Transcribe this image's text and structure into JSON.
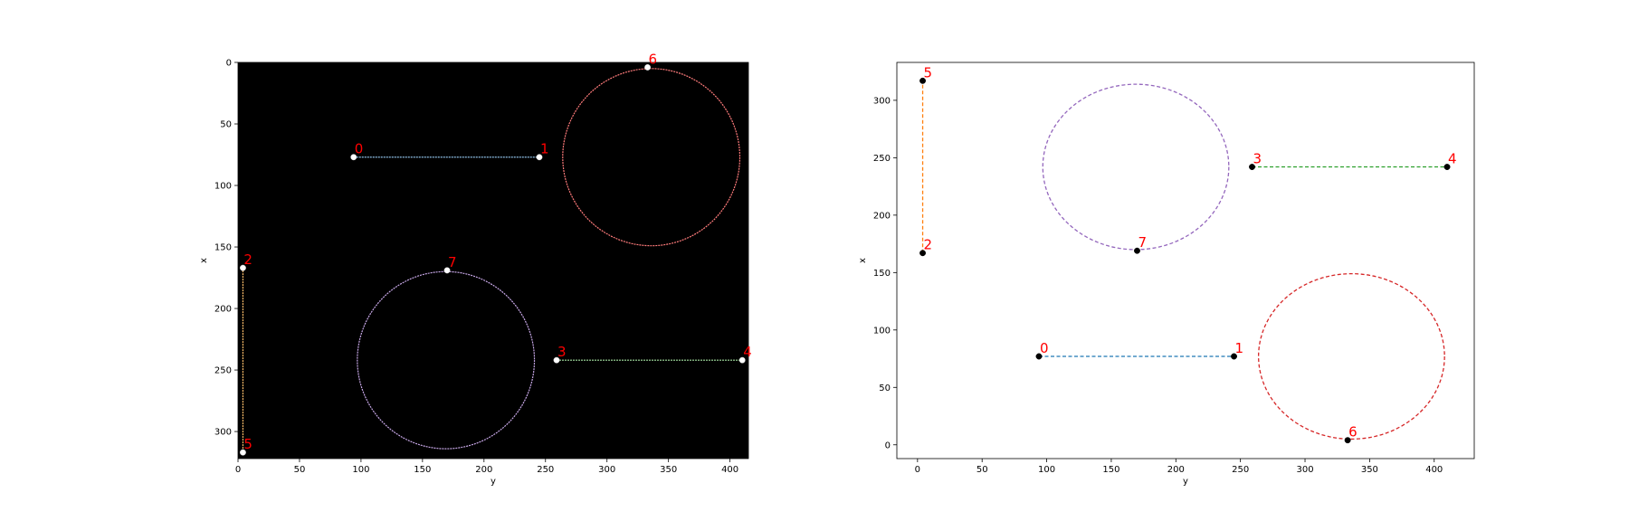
{
  "chart_data": [
    {
      "type": "scatter",
      "title": "",
      "xlabel": "y",
      "ylabel": "x",
      "xlim": [
        0,
        415
      ],
      "ylim": [
        322,
        0
      ],
      "background": "#000000",
      "point_color": "#ffffff",
      "label_color": "#ff0000",
      "xticks": [
        0,
        50,
        100,
        150,
        200,
        250,
        300,
        350,
        400
      ],
      "yticks": [
        0,
        50,
        100,
        150,
        200,
        250,
        300
      ],
      "points": [
        {
          "label": "0",
          "x": 94,
          "y": 77
        },
        {
          "label": "1",
          "x": 245,
          "y": 77
        },
        {
          "label": "2",
          "x": 4,
          "y": 167
        },
        {
          "label": "3",
          "x": 259,
          "y": 242
        },
        {
          "label": "4",
          "x": 410,
          "y": 242
        },
        {
          "label": "5",
          "x": 4,
          "y": 317
        },
        {
          "label": "6",
          "x": 333,
          "y": 4
        },
        {
          "label": "7",
          "x": 170,
          "y": 169
        }
      ],
      "segments": [
        {
          "from": [
            94,
            77
          ],
          "to": [
            245,
            77
          ],
          "color": "#8fc1e8"
        },
        {
          "from": [
            4,
            167
          ],
          "to": [
            4,
            317
          ],
          "color": "#ffbf6b"
        },
        {
          "from": [
            259,
            242
          ],
          "to": [
            410,
            242
          ],
          "color": "#a6e3a1"
        }
      ],
      "circles": [
        {
          "cx": 336,
          "cy": 77,
          "r": 72,
          "color": "#ff7b7b"
        },
        {
          "cx": 169,
          "cy": 242,
          "r": 72,
          "color": "#c8a8e8"
        }
      ]
    },
    {
      "type": "scatter",
      "title": "",
      "xlabel": "y",
      "ylabel": "x",
      "xlim": [
        -16,
        431
      ],
      "ylim": [
        -12,
        333
      ],
      "background": "#ffffff",
      "point_color": "#000000",
      "label_color": "#ff0000",
      "xticks": [
        0,
        50,
        100,
        150,
        200,
        250,
        300,
        350,
        400
      ],
      "yticks": [
        0,
        50,
        100,
        150,
        200,
        250,
        300
      ],
      "points": [
        {
          "label": "0",
          "x": 94,
          "y": 77
        },
        {
          "label": "1",
          "x": 245,
          "y": 77
        },
        {
          "label": "2",
          "x": 4,
          "y": 167
        },
        {
          "label": "3",
          "x": 259,
          "y": 242
        },
        {
          "label": "4",
          "x": 410,
          "y": 242
        },
        {
          "label": "5",
          "x": 4,
          "y": 317
        },
        {
          "label": "6",
          "x": 333,
          "y": 4
        },
        {
          "label": "7",
          "x": 170,
          "y": 169
        }
      ],
      "segments": [
        {
          "from": [
            94,
            77
          ],
          "to": [
            245,
            77
          ],
          "color": "#1f77b4"
        },
        {
          "from": [
            4,
            167
          ],
          "to": [
            4,
            317
          ],
          "color": "#ff7f0e"
        },
        {
          "from": [
            259,
            242
          ],
          "to": [
            410,
            242
          ],
          "color": "#2ca02c"
        }
      ],
      "circles": [
        {
          "cx": 169,
          "cy": 242,
          "r": 72,
          "color": "#9467bd"
        },
        {
          "cx": 336,
          "cy": 77,
          "r": 72,
          "color": "#d62728"
        }
      ]
    }
  ]
}
